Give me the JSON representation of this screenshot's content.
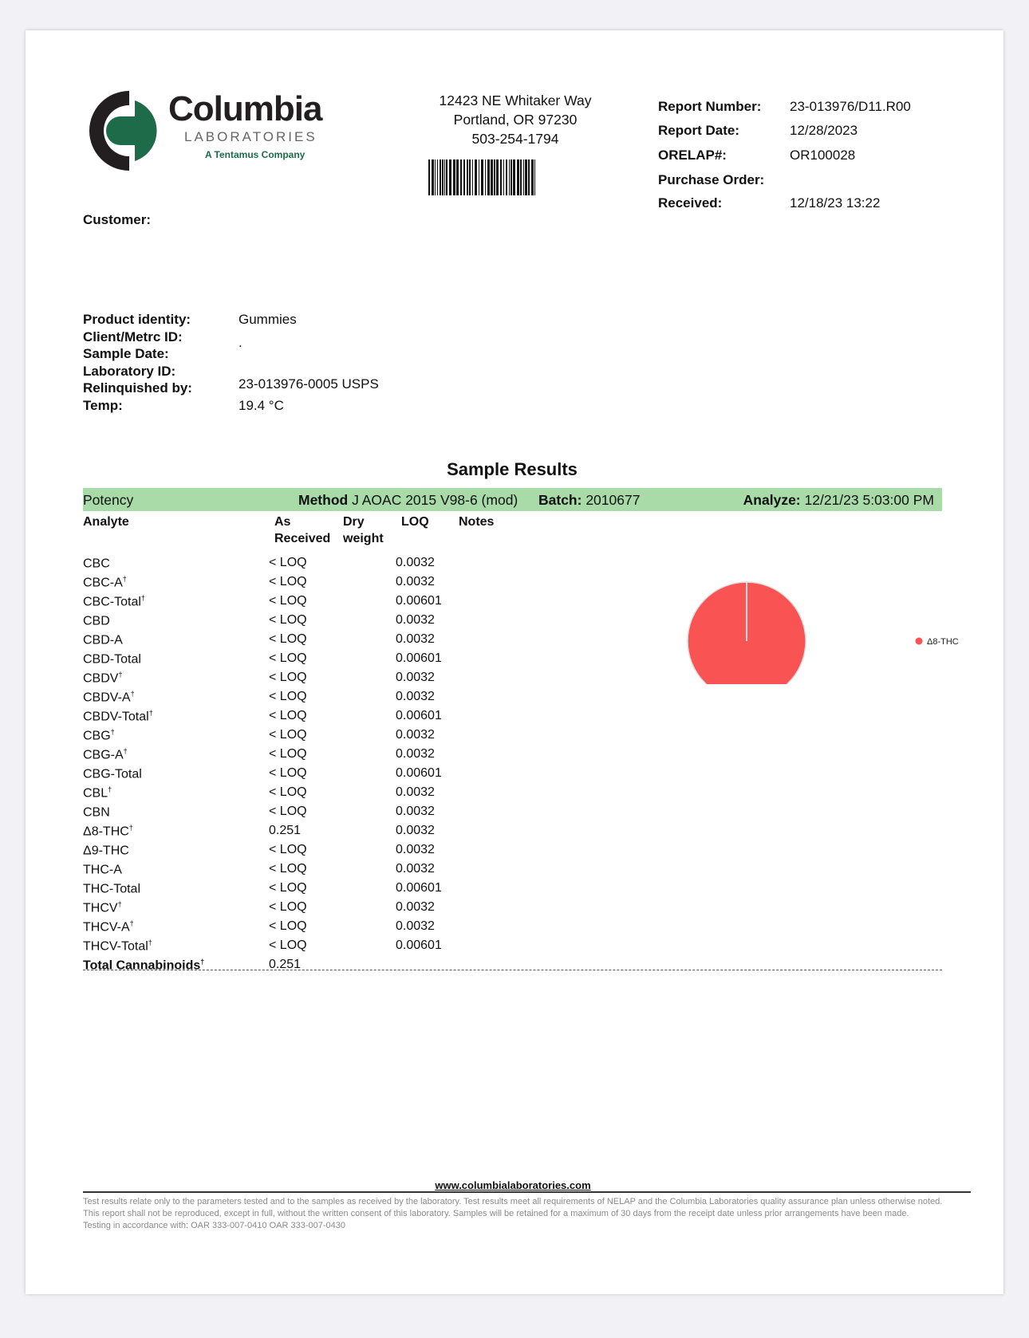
{
  "lab": {
    "logo_name": "Columbia",
    "logo_sub": "LABORATORIES",
    "logo_tag": "A Tentamus Company",
    "brand_dark": "#231f20",
    "brand_green": "#1e6b4a"
  },
  "address": {
    "line1": "12423 NE Whitaker Way",
    "line2": "Portland, OR 97230",
    "phone": "503-254-1794"
  },
  "report": [
    {
      "label": "Report Number:",
      "value": "23-013976/D11.R00"
    },
    {
      "label": "Report Date:",
      "value": "12/28/2023"
    },
    {
      "label": "ORELAP#:",
      "value": "OR100028"
    },
    {
      "label": "Purchase Order:",
      "value": ""
    },
    {
      "label": "Received:",
      "value": "12/18/23  13:22"
    }
  ],
  "customer_label": "Customer:",
  "product": {
    "labels": [
      "Product identity:",
      "Client/Metrc ID:",
      "Sample Date:",
      "Laboratory ID:",
      "Relinquished by:",
      "Temp:"
    ],
    "identity": "Gummies",
    "client_id": ".",
    "lab_id_relinquished": "23-013976-0005 USPS",
    "temp": "19.4 °C"
  },
  "section_title": "Sample Results",
  "potency": {
    "label": "Potency",
    "method_label": "Method",
    "method": "J AOAC 2015 V98-6 (mod)",
    "batch_label": "Batch:",
    "batch": "2010677",
    "analyze_label": "Analyze:",
    "analyze": "12/21/23  5:03:00 PM",
    "bar_color": "#a8dba8"
  },
  "columns": {
    "analyte": "Analyte",
    "as1": "As",
    "as2": "Received",
    "dry1": "Dry",
    "dry2": "weight",
    "loq": "LOQ",
    "notes": "Notes"
  },
  "rows": [
    {
      "analyte": "CBC",
      "dag": "",
      "as": "< LOQ",
      "loq": "0.0032"
    },
    {
      "analyte": "CBC-A",
      "dag": "†",
      "as": "< LOQ",
      "loq": "0.0032"
    },
    {
      "analyte": "CBC-Total",
      "dag": "†",
      "as": "< LOQ",
      "loq": "0.00601"
    },
    {
      "analyte": "CBD",
      "dag": "",
      "as": "< LOQ",
      "loq": "0.0032"
    },
    {
      "analyte": "CBD-A",
      "dag": "",
      "as": "< LOQ",
      "loq": "0.0032"
    },
    {
      "analyte": "CBD-Total",
      "dag": "",
      "as": "< LOQ",
      "loq": "0.00601"
    },
    {
      "analyte": "CBDV",
      "dag": "†",
      "as": "< LOQ",
      "loq": "0.0032"
    },
    {
      "analyte": "CBDV-A",
      "dag": "†",
      "as": "< LOQ",
      "loq": "0.0032"
    },
    {
      "analyte": "CBDV-Total",
      "dag": "†",
      "as": "< LOQ",
      "loq": "0.00601"
    },
    {
      "analyte": "CBG",
      "dag": "†",
      "as": "< LOQ",
      "loq": "0.0032"
    },
    {
      "analyte": "CBG-A",
      "dag": "†",
      "as": "< LOQ",
      "loq": "0.0032"
    },
    {
      "analyte": "CBG-Total",
      "dag": "",
      "as": "< LOQ",
      "loq": "0.00601"
    },
    {
      "analyte": "CBL",
      "dag": "†",
      "as": "< LOQ",
      "loq": "0.0032"
    },
    {
      "analyte": "CBN",
      "dag": "",
      "as": "< LOQ",
      "loq": "0.0032"
    },
    {
      "analyte": "Δ8-THC",
      "dag": "†",
      "as": "0.251",
      "loq": "0.0032"
    },
    {
      "analyte": "Δ9-THC",
      "dag": "",
      "as": "< LOQ",
      "loq": "0.0032"
    },
    {
      "analyte": "THC-A",
      "dag": "",
      "as": "< LOQ",
      "loq": "0.0032"
    },
    {
      "analyte": "THC-Total",
      "dag": "",
      "as": "< LOQ",
      "loq": "0.00601"
    },
    {
      "analyte": "THCV",
      "dag": "†",
      "as": "< LOQ",
      "loq": "0.0032"
    },
    {
      "analyte": "THCV-A",
      "dag": "†",
      "as": "< LOQ",
      "loq": "0.0032"
    },
    {
      "analyte": "THCV-Total",
      "dag": "†",
      "as": "< LOQ",
      "loq": "0.00601"
    }
  ],
  "total": {
    "analyte": "Total Cannabinoids",
    "dag": "†",
    "as": "0.251"
  },
  "chart_data": {
    "type": "pie",
    "slices": [
      {
        "label": "Δ8-THC",
        "value": 0.251,
        "color": "#f95353"
      }
    ],
    "legend": "right"
  },
  "footer": {
    "url": "www.columbialaboratories.com",
    "disclaimer": "Test results relate only to the parameters tested and to the samples as received by the laboratory. Test results meet all requirements of NELAP and the Columbia Laboratories quality assurance plan unless otherwise noted. This report shall not be reproduced, except in full, without the written consent of this laboratory. Samples will be retained for a maximum of 30 days from the receipt date unless prior arrangements have been made.",
    "accordance": "Testing in accordance with:   OAR 333-007-0410  OAR 333-007-0430"
  }
}
